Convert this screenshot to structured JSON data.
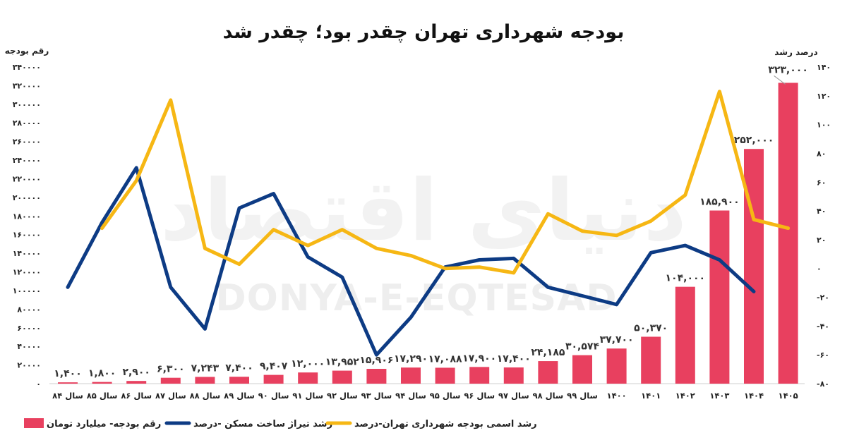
{
  "chart_data": {
    "type": "bar",
    "title": "بودجه شهرداری تهران چقدر بود؛ چقدر شد",
    "ylabel_left": "رقم بودجه",
    "ylabel_right": "درصد رشد",
    "categories": [
      "سال ۸۴",
      "سال ۸۵",
      "سال ۸۶",
      "سال ۸۷",
      "سال ۸۸",
      "سال ۸۹",
      "سال ۹۰",
      "سال ۹۱",
      "سال ۹۲",
      "سال ۹۳",
      "سال ۹۴",
      "سال ۹۵",
      "سال ۹۶",
      "سال ۹۷",
      "سال ۹۸",
      "سال ۹۹",
      "۱۴۰۰",
      "۱۴۰۱",
      "۱۴۰۲",
      "۱۴۰۳",
      "۱۴۰۴",
      "۱۴۰۵"
    ],
    "series": [
      {
        "name": "رقم بودجه-  میلیارد تومان",
        "type": "bar",
        "axis": "left",
        "color": "#e8405f",
        "values": [
          1400,
          1800,
          2900,
          6300,
          7243,
          7400,
          9407,
          12000,
          13952,
          15906,
          17290,
          17088,
          17900,
          17400,
          24185,
          30574,
          37700,
          50370,
          104000,
          185900,
          252000,
          323000
        ],
        "labels": [
          "۱,۴۰۰",
          "۱,۸۰۰",
          "۲,۹۰۰",
          "۶,۳۰۰",
          "۷,۲۴۳",
          "۷,۴۰۰",
          "۹,۴۰۷",
          "۱۲,۰۰۰",
          "۱۳,۹۵۲",
          "۱۵,۹۰۶",
          "۱۷,۲۹۰",
          "۱۷,۰۸۸",
          "۱۷,۹۰۰",
          "۱۷,۴۰۰",
          "۲۴,۱۸۵",
          "۳۰,۵۷۴",
          "۳۷,۷۰۰",
          "۵۰,۳۷۰",
          "۱۰۴,۰۰۰",
          "۱۸۵,۹۰۰",
          "۲۵۲,۰۰۰",
          "۳۲۳,۰۰۰"
        ]
      },
      {
        "name": "رشد تیراژ ساخت مسکن -درصد",
        "type": "line",
        "axis": "right",
        "color": "#0d3b84",
        "values": [
          -13,
          32,
          70,
          -13,
          -42,
          42,
          52,
          8,
          -6,
          -60,
          -34,
          1,
          6,
          7,
          -13,
          -19,
          -25,
          11,
          16,
          6,
          -16,
          null
        ]
      },
      {
        "name": "رشد اسمی بودجه شهرداری تهران-درصد",
        "type": "line",
        "axis": "right",
        "color": "#f6b714",
        "values": [
          null,
          28,
          61,
          117,
          14,
          3,
          27,
          16,
          27,
          14,
          9,
          0,
          1,
          -3,
          38,
          26,
          23,
          33,
          51,
          123,
          34,
          28
        ]
      }
    ],
    "yticks_left": [
      "۰",
      "۲۰۰۰۰",
      "۴۰۰۰۰",
      "۶۰۰۰۰",
      "۸۰۰۰۰",
      "۱۰۰۰۰۰",
      "۱۲۰۰۰۰",
      "۱۴۰۰۰۰",
      "۱۶۰۰۰۰",
      "۱۸۰۰۰۰",
      "۲۰۰۰۰۰",
      "۲۲۰۰۰۰",
      "۲۴۰۰۰۰",
      "۲۶۰۰۰۰",
      "۲۸۰۰۰۰",
      "۳۰۰۰۰۰",
      "۳۲۰۰۰۰",
      "۳۴۰۰۰۰"
    ],
    "yticks_right": [
      "-۸۰",
      "-۶۰",
      "-۴۰",
      "-۲۰",
      "۰",
      "۲۰",
      "۴۰",
      "۶۰",
      "۸۰",
      "۱۰۰",
      "۱۲۰",
      "۱۴۰"
    ],
    "ylim_left": [
      0,
      340000
    ],
    "ylim_right": [
      -80,
      140
    ],
    "grid": false,
    "legend": "bottom",
    "watermark": [
      "دنیای اقتصاد",
      "DONYA-E-EQTESAD"
    ]
  }
}
